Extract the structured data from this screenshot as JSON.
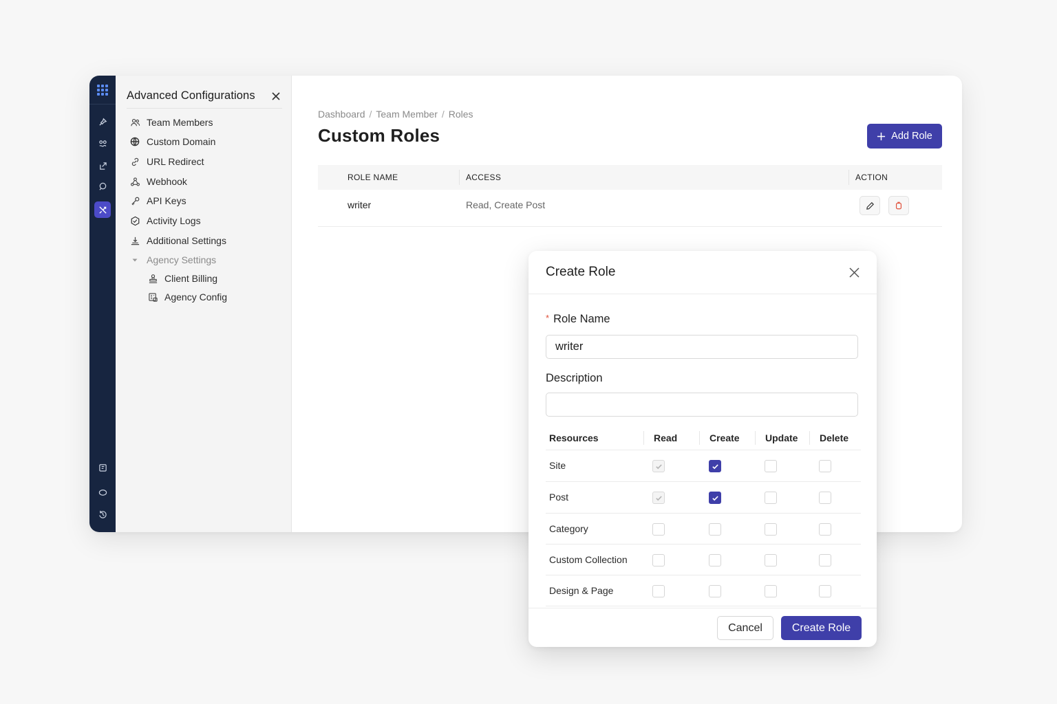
{
  "rail": {
    "icons": [
      "grid-icon",
      "pin-icon",
      "integrations-icon",
      "export-icon",
      "chat-icon",
      "tools-icon",
      "notes-icon",
      "comment-icon",
      "history-icon"
    ],
    "active": "tools-icon"
  },
  "sidebar": {
    "title": "Advanced Configurations",
    "items": [
      {
        "label": "Team Members",
        "icon": "team-icon"
      },
      {
        "label": "Custom Domain",
        "icon": "globe-icon"
      },
      {
        "label": "URL Redirect",
        "icon": "link-icon"
      },
      {
        "label": "Webhook",
        "icon": "webhook-icon"
      },
      {
        "label": "API Keys",
        "icon": "key-icon"
      },
      {
        "label": "Activity Logs",
        "icon": "activity-icon"
      },
      {
        "label": "Additional Settings",
        "icon": "settings-stamp-icon"
      }
    ],
    "group": {
      "label": "Agency Settings",
      "icon": "caret-down-icon"
    },
    "sub_items": [
      {
        "label": "Client Billing",
        "icon": "billing-icon"
      },
      {
        "label": "Agency Config",
        "icon": "agency-icon"
      }
    ]
  },
  "main": {
    "breadcrumb": [
      "Dashboard",
      "Team Member",
      "Roles"
    ],
    "breadcrumb_sep": "/",
    "title": "Custom Roles",
    "add_button": "Add Role",
    "table": {
      "headers": [
        "ROLE NAME",
        "ACCESS",
        "ACTION"
      ],
      "rows": [
        {
          "name": "writer",
          "access": "Read, Create Post"
        }
      ]
    }
  },
  "modal": {
    "title": "Create Role",
    "role_name_label": "Role Name",
    "role_name_required": "*",
    "role_name_value": "writer",
    "description_label": "Description",
    "description_value": "",
    "permissions": {
      "headers": [
        "Resources",
        "Read",
        "Create",
        "Update",
        "Delete"
      ],
      "rows": [
        {
          "resource": "Site",
          "read": "checked-disabled",
          "create": "checked",
          "update": "unchecked",
          "delete": "unchecked"
        },
        {
          "resource": "Post",
          "read": "checked-disabled",
          "create": "checked",
          "update": "unchecked",
          "delete": "unchecked"
        },
        {
          "resource": "Category",
          "read": "unchecked",
          "create": "unchecked",
          "update": "unchecked",
          "delete": "unchecked"
        },
        {
          "resource": "Custom Collection",
          "read": "unchecked",
          "create": "unchecked",
          "update": "unchecked",
          "delete": "unchecked"
        },
        {
          "resource": "Design & Page",
          "read": "unchecked",
          "create": "unchecked",
          "update": "unchecked",
          "delete": "unchecked"
        }
      ]
    },
    "cancel_label": "Cancel",
    "submit_label": "Create Role"
  },
  "colors": {
    "primary": "#3f3fa9",
    "rail": "#172540",
    "rail_active": "#4c4bc8",
    "danger": "#e0503a"
  }
}
